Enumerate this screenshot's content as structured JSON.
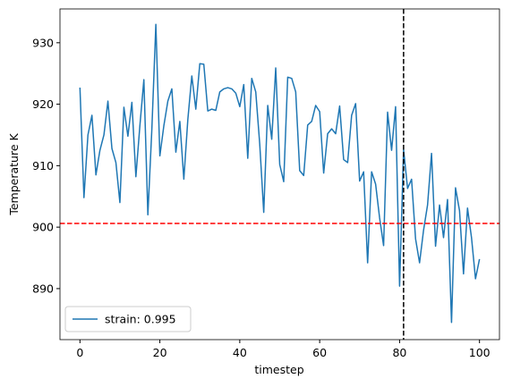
{
  "chart_data": {
    "type": "line",
    "x_label": "timestep",
    "y_label": "Temperature K",
    "x": [
      0,
      1,
      2,
      3,
      4,
      5,
      6,
      7,
      8,
      9,
      10,
      11,
      12,
      13,
      14,
      15,
      16,
      17,
      18,
      19,
      20,
      21,
      22,
      23,
      24,
      25,
      26,
      27,
      28,
      29,
      30,
      31,
      32,
      33,
      34,
      35,
      36,
      37,
      38,
      39,
      40,
      41,
      42,
      43,
      44,
      45,
      46,
      47,
      48,
      49,
      50,
      51,
      52,
      53,
      54,
      55,
      56,
      57,
      58,
      59,
      60,
      61,
      62,
      63,
      64,
      65,
      66,
      67,
      68,
      69,
      70,
      71,
      72,
      73,
      74,
      75,
      76,
      77,
      78,
      79,
      80,
      81,
      82,
      83,
      84,
      85,
      86,
      87,
      88,
      89,
      90,
      91,
      92,
      93,
      94,
      95,
      96,
      97,
      98,
      99,
      100
    ],
    "series": [
      {
        "name": "strain: 0.995",
        "color": "#1f77b4",
        "values": [
          922.7,
          904.8,
          915,
          918.2,
          908.5,
          912.5,
          915,
          920.5,
          912.8,
          910.5,
          904,
          919.5,
          914.8,
          920.3,
          908.2,
          916.5,
          924,
          902,
          916,
          933,
          911.6,
          916.5,
          920.5,
          922.5,
          912.2,
          917.2,
          907.8,
          917.5,
          924.6,
          919.2,
          926.6,
          926.5,
          918.9,
          919.2,
          919,
          922,
          922.5,
          922.7,
          922.5,
          921.8,
          919.6,
          923.2,
          911.2,
          924.2,
          922,
          913.5,
          902.4,
          919.8,
          914.3,
          925.9,
          910.2,
          907.4,
          924.4,
          924.2,
          922,
          909.2,
          908.4,
          916.6,
          917.2,
          919.8,
          918.8,
          908.8,
          915.2,
          916,
          915.2,
          919.7,
          911,
          910.5,
          918.2,
          920.1,
          907.5,
          909,
          894.2,
          909,
          907,
          901.5,
          897,
          918.7,
          912.5,
          919.6,
          890.4,
          912.6,
          906.3,
          907.8,
          898.1,
          894.2,
          899.5,
          903.6,
          912,
          896.9,
          903.6,
          898.3,
          904.5,
          884.5,
          906.4,
          902.7,
          892.4,
          903.1,
          898.3,
          891.6,
          894.8
        ]
      }
    ],
    "xlim": [
      -5,
      105
    ],
    "ylim": [
      881.7,
      935.5
    ],
    "xticks": [
      0,
      20,
      40,
      60,
      80,
      100
    ],
    "yticks": [
      890,
      900,
      910,
      920,
      930
    ],
    "hlines": [
      {
        "value": 900.6,
        "color": "#ff0000"
      }
    ],
    "vlines": [
      {
        "value": 81,
        "color": "#000000"
      }
    ],
    "legend": "lower left"
  }
}
